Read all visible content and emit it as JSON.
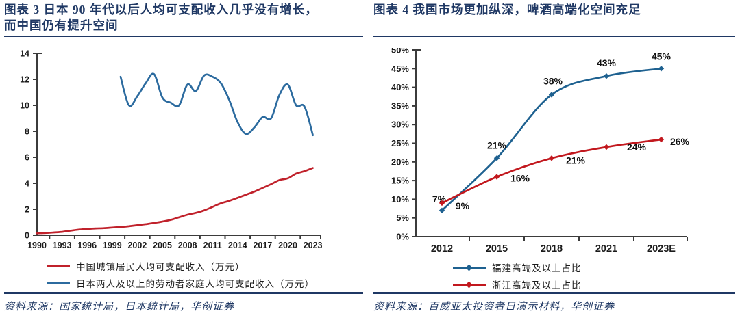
{
  "page": {
    "background": "#ffffff",
    "accent_navy": "#1f3864",
    "axis_color": "#3b3b3b"
  },
  "figures": [
    {
      "title": "图表 3 日本 90 年代以后人均可支配收入几乎没有增长，而中国仍有提升空间",
      "source": "资料来源：国家统计局，日本统计局，华创证券"
    },
    {
      "title": "图表 4 我国市场更加纵深，啤酒高端化空间充足",
      "source": "资料来源：百威亚太投资者日演示材料，华创证券"
    }
  ],
  "chart_data": [
    {
      "type": "line",
      "title": "日本90年代以后人均可支配收入几乎没有增长，而中国仍有提升空间",
      "xlabel": "",
      "ylabel": "",
      "xlim": [
        1990,
        2023
      ],
      "ylim": [
        0,
        14
      ],
      "y_ticks": [
        0,
        2,
        4,
        6,
        8,
        10,
        12,
        14
      ],
      "x_ticks": [
        1990,
        1993,
        1996,
        1999,
        2002,
        2005,
        2008,
        2011,
        2014,
        2017,
        2020,
        2023
      ],
      "grid": false,
      "legend_position": "bottom-left",
      "series": [
        {
          "name": "中国城镇居民人均可支配收入（万元）",
          "color": "#c0212b",
          "marker": "none",
          "x": [
            1990,
            1991,
            1992,
            1993,
            1994,
            1995,
            1996,
            1997,
            1998,
            1999,
            2000,
            2001,
            2002,
            2003,
            2004,
            2005,
            2006,
            2007,
            2008,
            2009,
            2010,
            2011,
            2012,
            2013,
            2014,
            2015,
            2016,
            2017,
            2018,
            2019,
            2020,
            2021,
            2022,
            2023
          ],
          "values": [
            0.15,
            0.17,
            0.21,
            0.26,
            0.35,
            0.43,
            0.48,
            0.52,
            0.54,
            0.59,
            0.63,
            0.69,
            0.77,
            0.85,
            0.94,
            1.05,
            1.18,
            1.38,
            1.58,
            1.72,
            1.91,
            2.18,
            2.46,
            2.65,
            2.88,
            3.12,
            3.36,
            3.64,
            3.93,
            4.24,
            4.38,
            4.74,
            4.93,
            5.18
          ]
        },
        {
          "name": "日本两人及以上的劳动者家庭人均可支配收入（万元）",
          "color": "#2c6b9f",
          "marker": "none",
          "x": [
            2000,
            2001,
            2002,
            2003,
            2004,
            2005,
            2006,
            2007,
            2008,
            2009,
            2010,
            2011,
            2012,
            2013,
            2014,
            2015,
            2016,
            2017,
            2018,
            2019,
            2020,
            2021,
            2022,
            2023
          ],
          "values": [
            12.2,
            10.0,
            10.7,
            11.7,
            12.4,
            10.6,
            10.2,
            10.0,
            11.6,
            11.1,
            12.3,
            12.2,
            11.7,
            10.4,
            8.7,
            7.8,
            8.3,
            9.1,
            9.0,
            10.8,
            11.6,
            10.0,
            9.9,
            7.7
          ]
        }
      ]
    },
    {
      "type": "line",
      "title": "我国市场更加纵深，啤酒高端化空间充足",
      "xlabel": "",
      "ylabel": "",
      "categories": [
        "2012",
        "2015",
        "2018",
        "2021",
        "2023E"
      ],
      "ylim": [
        0,
        50
      ],
      "y_ticks": [
        "0%",
        "5%",
        "10%",
        "15%",
        "20%",
        "25%",
        "30%",
        "35%",
        "40%",
        "45%",
        "50%"
      ],
      "grid": false,
      "legend_position": "bottom-center",
      "series": [
        {
          "name": "福建高端及以上占比",
          "color": "#1e6190",
          "marker": "diamond",
          "values": [
            7,
            21,
            38,
            43,
            45
          ],
          "labels": [
            "7%",
            "21%",
            "38%",
            "43%",
            "45%"
          ]
        },
        {
          "name": "浙江高端及以上占比",
          "color": "#c2181e",
          "marker": "diamond",
          "values": [
            9,
            16,
            21,
            24,
            26
          ],
          "labels": [
            "9%",
            "16%",
            "21%",
            "24%",
            "26%"
          ]
        }
      ]
    }
  ]
}
